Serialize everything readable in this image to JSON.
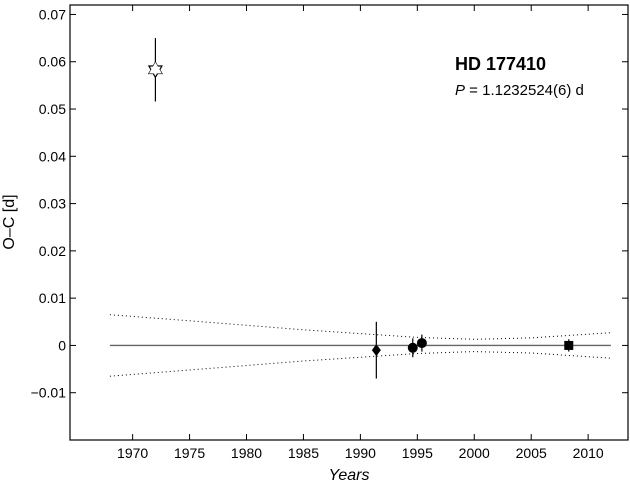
{
  "chart_data": {
    "type": "scatter",
    "xlabel": "Years",
    "ylabel": "O–C  [d]",
    "xlim": [
      1964.5,
      2013.5
    ],
    "ylim": [
      -0.02,
      0.072
    ],
    "xticks": [
      1970,
      1975,
      1980,
      1985,
      1990,
      1995,
      2000,
      2005,
      2010
    ],
    "xtick_labels": [
      "1970",
      "1975",
      "1980",
      "1985",
      "1990",
      "1995",
      "2000",
      "2005",
      "2010"
    ],
    "yticks": [
      -0.01,
      0,
      0.01,
      0.02,
      0.03,
      0.04,
      0.05,
      0.06,
      0.07
    ],
    "ytick_labels": [
      "−0.01",
      "0",
      "0.01",
      "0.02",
      "0.03",
      "0.04",
      "0.05",
      "0.06",
      "0.07"
    ],
    "grid": false,
    "annotations": {
      "star_name": "HD 177410",
      "period_symbol": "P",
      "period_value": " = 1.1232524(6) d"
    },
    "points": [
      {
        "x": 1972.0,
        "y": 0.0583,
        "err": 0.0067,
        "marker": "hexagram-open"
      },
      {
        "x": 1991.4,
        "y": -0.001,
        "err": 0.006,
        "marker": "diamond"
      },
      {
        "x": 1994.6,
        "y": -0.0005,
        "err": 0.002,
        "marker": "circle"
      },
      {
        "x": 1995.4,
        "y": 0.0005,
        "err": 0.0018,
        "marker": "circle"
      },
      {
        "x": 2008.3,
        "y": 0.0,
        "err": 0.0013,
        "marker": "square"
      }
    ],
    "fit_line": {
      "x": [
        1968,
        2012
      ],
      "y": [
        0,
        0
      ],
      "style": "solid",
      "color": "#666666"
    },
    "upper_envelope": {
      "x": [
        1968,
        1975,
        1985,
        1995,
        2000,
        2005,
        2012
      ],
      "y": [
        0.0065,
        0.0052,
        0.0033,
        0.0017,
        0.0013,
        0.0016,
        0.0027
      ],
      "style": "dotted"
    },
    "lower_envelope": {
      "x": [
        1968,
        1975,
        1985,
        1995,
        2000,
        2005,
        2012
      ],
      "y": [
        -0.0065,
        -0.0052,
        -0.0033,
        -0.0017,
        -0.0013,
        -0.0016,
        -0.0027
      ],
      "style": "dotted"
    }
  }
}
